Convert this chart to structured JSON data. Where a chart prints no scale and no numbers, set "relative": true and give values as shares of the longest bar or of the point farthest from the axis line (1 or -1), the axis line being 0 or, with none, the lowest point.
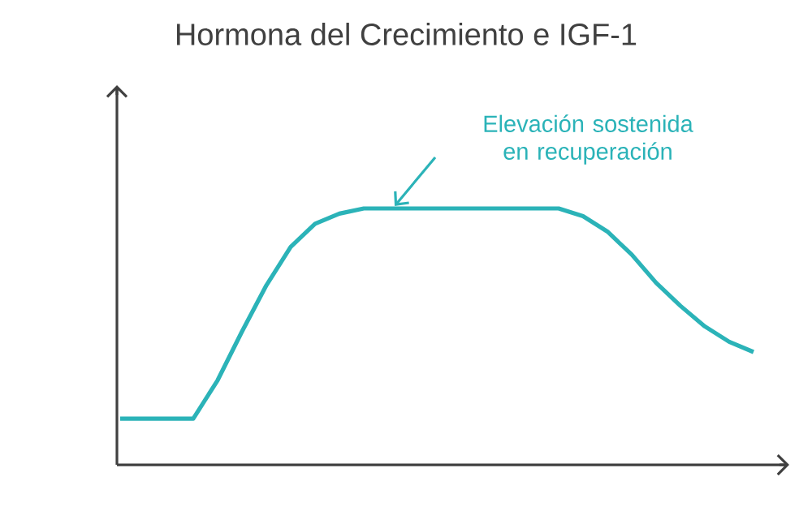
{
  "chart_data": {
    "type": "line",
    "title": "Hormona del Crecimiento e IGF-1",
    "relative": true,
    "categories": [
      null,
      null,
      null,
      null,
      null,
      null,
      null,
      null,
      null,
      null,
      null,
      null,
      null,
      null,
      null,
      null,
      null,
      null,
      null,
      null,
      null,
      null,
      null,
      null,
      null,
      null,
      null
    ],
    "series": [
      {
        "color": "#2bb3b8",
        "values": [
          0.18,
          0.18,
          0.18,
          0.18,
          0.33,
          0.52,
          0.7,
          0.85,
          0.94,
          0.98,
          1,
          1,
          1,
          1,
          1,
          1,
          1,
          1,
          1,
          0.97,
          0.91,
          0.82,
          0.71,
          0.62,
          0.54,
          0.48,
          0.44
        ]
      }
    ],
    "annotations": [
      "Elevación sostenida en recuperación"
    ]
  }
}
